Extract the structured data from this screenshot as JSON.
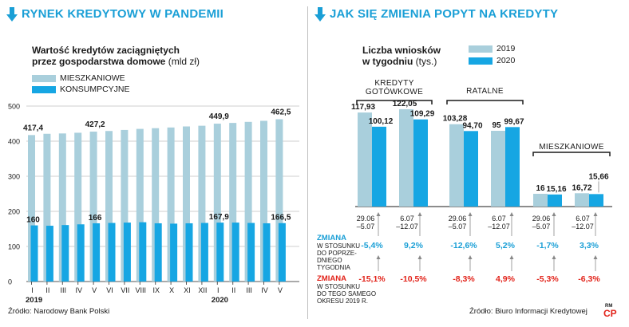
{
  "left": {
    "header": "RYNEK KREDYTOWY W PANDEMII",
    "subtitle_line1": "Wartość kredytów zaciągniętych",
    "subtitle_line2": "przez gospodarstwa domowe",
    "unit": "(mld zł)",
    "source": "Źródło: Narodowy Bank Polski"
  },
  "right": {
    "header": "JAK SIĘ ZMIENIA POPYT NA KREDYTY",
    "subtitle_line1": "Liczba wniosków",
    "subtitle_line2": "w tygodniu",
    "unit": "(tys.)",
    "source": "Źródło: Biuro Informacji Kredytowej"
  },
  "logo": {
    "top": "RM",
    "main": "CP"
  },
  "colors": {
    "accent": "#1a9fd6",
    "light": "#a9cfdc",
    "dark": "#16a6e3",
    "red": "#e2231a",
    "text": "#1a1a1a"
  },
  "chart_data": [
    {
      "type": "bar",
      "legend_position": "top-left",
      "grid": true,
      "ylim": [
        0,
        500
      ],
      "yticks": [
        "0",
        "100",
        "200",
        "300",
        "400",
        "500"
      ],
      "categories": [
        "I",
        "II",
        "III",
        "IV",
        "V",
        "VI",
        "VII",
        "VIII",
        "IX",
        "X",
        "XI",
        "XII",
        "I",
        "II",
        "III",
        "IV",
        "V"
      ],
      "year_labels": [
        {
          "index": 0,
          "label": "2019"
        },
        {
          "index": 12,
          "label": "2020"
        }
      ],
      "series": [
        {
          "name": "MIESZKANIOWE",
          "color": "#a9cfdc",
          "values": [
            417.4,
            421,
            422,
            424,
            427.2,
            429,
            432,
            435,
            437,
            439,
            442,
            444,
            449.9,
            452,
            455,
            458,
            462.5
          ],
          "labels": [
            "417,4",
            "",
            "",
            "",
            "427,2",
            "",
            "",
            "",
            "",
            "",
            "",
            "",
            "449,9",
            "",
            "",
            "",
            "462,5"
          ]
        },
        {
          "name": "KONSUMPCYJNE",
          "color": "#16a6e3",
          "values": [
            160,
            159,
            161,
            163,
            166,
            167,
            168,
            169,
            166,
            165,
            166,
            167,
            167.9,
            168,
            167,
            166,
            166.5
          ],
          "labels": [
            "160",
            "",
            "",
            "",
            "166",
            "",
            "",
            "",
            "",
            "",
            "",
            "",
            "167,9",
            "",
            "",
            "",
            "166,5"
          ]
        }
      ]
    },
    {
      "type": "bar",
      "legend_position": "top-right",
      "grid": false,
      "ylim": [
        0,
        130
      ],
      "legend": [
        {
          "name": "2019",
          "color": "#a9cfdc"
        },
        {
          "name": "2020",
          "color": "#16a6e3"
        }
      ],
      "groups": [
        {
          "label_lines": [
            "KREDYTY",
            "GOTÓWKOWE"
          ]
        },
        {
          "label_lines": [
            "RATALNE"
          ]
        },
        {
          "label_lines": [
            "MIESZKANIOWE"
          ]
        }
      ],
      "periods": [
        {
          "line1": "29.06",
          "line2": "–5.07"
        },
        {
          "line1": "6.07",
          "line2": "–12.07"
        },
        {
          "line1": "29.06",
          "line2": "–5.07"
        },
        {
          "line1": "6.07",
          "line2": "–12.07"
        },
        {
          "line1": "29.06",
          "line2": "–5.07"
        },
        {
          "line1": "6.07",
          "line2": "–12.07"
        }
      ],
      "series": [
        {
          "name": "2019",
          "values": [
            117.93,
            122.05,
            103.28,
            95,
            16,
            16.72
          ],
          "labels": [
            "117,93",
            "122,05",
            "103,28",
            "95",
            "16",
            "16,72"
          ]
        },
        {
          "name": "2020",
          "values": [
            100.12,
            109.29,
            94.7,
            99.67,
            15.16,
            15.66
          ],
          "labels": [
            "100,12",
            "109,29",
            "94,70",
            "99,67",
            "15,16",
            "15,66"
          ]
        }
      ],
      "change_weekly": {
        "title": "ZMIANA",
        "desc_lines": [
          "W STOSUNKU",
          "DO POPRZE-",
          "DNIEGO",
          "TYGODNIA"
        ],
        "values": [
          "-5,4%",
          "9,2%",
          "-12,6%",
          "5,2%",
          "-1,7%",
          "3,3%"
        ]
      },
      "change_yearly": {
        "title": "ZMIANA",
        "desc_lines": [
          "W STOSUNKU",
          "DO TEGO SAMEGO",
          "OKRESU 2019 R."
        ],
        "values": [
          "-15,1%",
          "-10,5%",
          "-8,3%",
          "4,9%",
          "-5,3%",
          "-6,3%"
        ]
      }
    }
  ]
}
